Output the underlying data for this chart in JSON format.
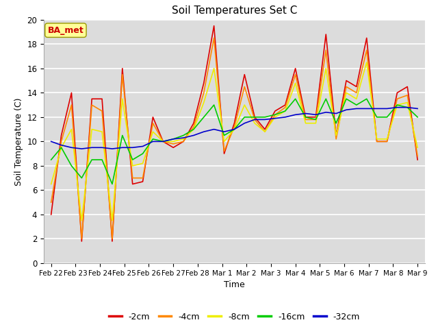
{
  "title": "Soil Temperatures Set C",
  "xlabel": "Time",
  "ylabel": "Soil Temperature (C)",
  "ylim": [
    0,
    20
  ],
  "fig_bg": "#ffffff",
  "plot_bg": "#dcdcdc",
  "label_box_text": "BA_met",
  "label_box_fg": "#cc0000",
  "label_box_bg": "#ffff99",
  "label_box_edge": "#999900",
  "legend_labels": [
    "-2cm",
    "-4cm",
    "-8cm",
    "-16cm",
    "-32cm"
  ],
  "legend_colors": [
    "#dd0000",
    "#ff8800",
    "#eeee00",
    "#00cc00",
    "#0000cc"
  ],
  "tick_labels": [
    "Feb 22",
    "Feb 23",
    "Feb 24",
    "Feb 25",
    "Feb 26",
    "Feb 27",
    "Feb 28",
    "Mar 1",
    "Mar 2",
    "Mar 3",
    "Mar 4",
    "Mar 5",
    "Mar 6",
    "Mar 7",
    "Mar 8",
    "Mar 9"
  ],
  "series_neg2cm": [
    4.0,
    10.5,
    14.0,
    1.8,
    13.5,
    13.5,
    1.8,
    16.0,
    6.5,
    6.7,
    12.0,
    10.0,
    9.5,
    10.0,
    11.5,
    14.8,
    19.5,
    9.0,
    11.5,
    15.5,
    12.0,
    11.0,
    12.5,
    13.0,
    16.0,
    12.0,
    12.0,
    18.8,
    10.5,
    15.0,
    14.5,
    18.5,
    10.0,
    10.0,
    14.0,
    14.5,
    8.5
  ],
  "series_neg4cm": [
    5.0,
    10.0,
    13.0,
    2.0,
    13.0,
    12.5,
    2.0,
    15.5,
    7.0,
    7.0,
    11.5,
    10.0,
    9.8,
    10.0,
    11.2,
    14.0,
    18.5,
    9.2,
    11.2,
    14.5,
    11.8,
    10.8,
    12.2,
    12.8,
    15.5,
    11.8,
    11.8,
    17.5,
    10.2,
    14.5,
    14.0,
    17.5,
    10.0,
    10.0,
    13.5,
    13.8,
    8.8
  ],
  "series_neg8cm": [
    6.5,
    9.5,
    11.0,
    3.5,
    11.0,
    10.8,
    3.5,
    13.5,
    8.0,
    8.2,
    10.8,
    10.0,
    10.0,
    10.2,
    11.0,
    13.2,
    16.0,
    10.0,
    11.0,
    13.0,
    11.5,
    10.8,
    12.0,
    12.5,
    14.8,
    11.5,
    11.5,
    16.0,
    10.5,
    14.0,
    13.5,
    16.5,
    10.2,
    10.2,
    13.0,
    13.2,
    9.5
  ],
  "series_neg16cm": [
    8.5,
    9.5,
    8.0,
    7.0,
    8.5,
    8.5,
    6.5,
    10.5,
    8.5,
    9.0,
    10.2,
    10.0,
    10.2,
    10.5,
    11.0,
    12.0,
    13.0,
    10.5,
    11.0,
    12.0,
    12.0,
    12.0,
    12.2,
    12.5,
    13.5,
    12.0,
    11.8,
    13.5,
    11.5,
    13.5,
    13.0,
    13.5,
    12.0,
    12.0,
    13.0,
    12.8,
    12.0
  ],
  "series_neg32cm": [
    10.0,
    9.7,
    9.5,
    9.4,
    9.5,
    9.5,
    9.4,
    9.5,
    9.5,
    9.6,
    10.0,
    10.0,
    10.2,
    10.3,
    10.5,
    10.8,
    11.0,
    10.8,
    11.0,
    11.5,
    11.8,
    11.8,
    11.9,
    12.0,
    12.2,
    12.3,
    12.2,
    12.4,
    12.3,
    12.6,
    12.7,
    12.7,
    12.7,
    12.7,
    12.8,
    12.8,
    12.7
  ]
}
